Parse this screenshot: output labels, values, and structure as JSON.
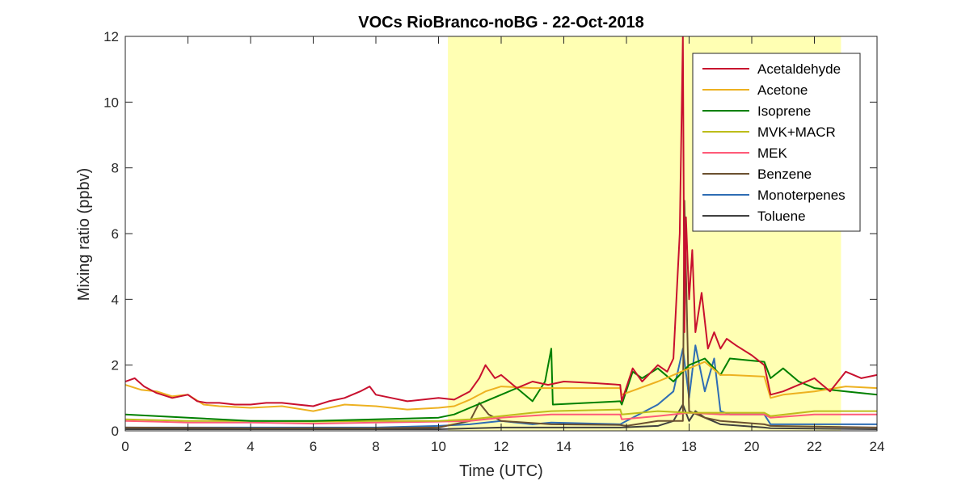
{
  "chart_data": {
    "type": "line",
    "title": "VOCs RioBranco-noBG - 22-Oct-2018",
    "xlabel": "Time (UTC)",
    "ylabel": "Mixing ratio (ppbv)",
    "xlim": [
      0,
      24
    ],
    "ylim": [
      0,
      12
    ],
    "xticks": [
      0,
      2,
      4,
      6,
      8,
      10,
      12,
      14,
      16,
      18,
      20,
      22,
      24
    ],
    "yticks": [
      0,
      2,
      4,
      6,
      8,
      10,
      12
    ],
    "grid": false,
    "legend_position": "top-right",
    "shaded_region": {
      "x": [
        10.3,
        22.85
      ],
      "color": "#ffffb3"
    },
    "series": [
      {
        "name": "Acetaldehyde",
        "color": "#c8102e",
        "x": [
          0,
          0.3,
          0.6,
          1.0,
          1.5,
          2.0,
          2.3,
          2.6,
          3.0,
          3.5,
          4.0,
          4.5,
          5.0,
          5.5,
          6.0,
          6.5,
          7.0,
          7.5,
          7.8,
          8.0,
          8.5,
          9.0,
          9.5,
          10.0,
          10.5,
          11.0,
          11.3,
          11.5,
          11.8,
          12.0,
          12.5,
          13.0,
          13.5,
          14.0,
          15.0,
          15.8,
          15.85,
          16.2,
          16.5,
          17.0,
          17.3,
          17.5,
          17.7,
          17.8,
          17.85,
          17.9,
          18.0,
          18.1,
          18.2,
          18.4,
          18.6,
          18.8,
          19.0,
          19.2,
          19.5,
          20.0,
          20.4,
          20.6,
          21.0,
          21.5,
          22.0,
          22.5,
          23.0,
          23.5,
          24.0
        ],
        "y": [
          1.5,
          1.6,
          1.35,
          1.15,
          1.0,
          1.1,
          0.9,
          0.85,
          0.85,
          0.8,
          0.8,
          0.85,
          0.85,
          0.8,
          0.75,
          0.9,
          1.0,
          1.2,
          1.35,
          1.1,
          1.0,
          0.9,
          0.95,
          1.0,
          0.95,
          1.2,
          1.6,
          2.0,
          1.6,
          1.7,
          1.3,
          1.5,
          1.4,
          1.5,
          1.45,
          1.4,
          0.9,
          1.9,
          1.5,
          2.0,
          1.8,
          2.2,
          6.0,
          12.0,
          3.0,
          6.5,
          4.0,
          5.5,
          3.0,
          4.2,
          2.5,
          3.0,
          2.5,
          2.8,
          2.6,
          2.3,
          2.0,
          1.1,
          1.2,
          1.4,
          1.6,
          1.2,
          1.8,
          1.6,
          1.7
        ]
      },
      {
        "name": "Acetone",
        "color": "#edb120",
        "x": [
          0,
          0.5,
          1.0,
          1.5,
          2.0,
          2.5,
          3.0,
          4.0,
          5.0,
          6.0,
          7.0,
          8.0,
          9.0,
          10.0,
          10.5,
          11.0,
          11.5,
          12.0,
          13.0,
          13.6,
          15.8,
          15.85,
          17.0,
          17.5,
          18.0,
          18.5,
          19.0,
          19.3,
          20.4,
          20.6,
          21.0,
          22.0,
          23.0,
          24.0
        ],
        "y": [
          1.4,
          1.25,
          1.2,
          1.05,
          1.1,
          0.8,
          0.75,
          0.7,
          0.75,
          0.6,
          0.8,
          0.75,
          0.65,
          0.7,
          0.75,
          0.95,
          1.2,
          1.35,
          1.3,
          1.3,
          1.3,
          1.1,
          1.5,
          1.7,
          1.9,
          2.1,
          1.7,
          1.7,
          1.65,
          1.0,
          1.1,
          1.2,
          1.35,
          1.3
        ]
      },
      {
        "name": "Isoprene",
        "color": "#008000",
        "x": [
          0,
          1.0,
          2.0,
          4.0,
          6.0,
          8.0,
          10.0,
          10.5,
          11.0,
          11.5,
          12.0,
          12.5,
          13.0,
          13.4,
          13.6,
          13.65,
          15.8,
          15.85,
          16.2,
          16.5,
          17.0,
          17.5,
          18.0,
          18.5,
          19.0,
          19.3,
          20.4,
          20.6,
          21.0,
          21.5,
          22.0,
          23.0,
          24.0
        ],
        "y": [
          0.5,
          0.45,
          0.4,
          0.3,
          0.3,
          0.35,
          0.4,
          0.5,
          0.7,
          0.9,
          1.1,
          1.3,
          0.9,
          1.5,
          2.5,
          0.8,
          0.9,
          0.8,
          1.8,
          1.6,
          1.9,
          1.5,
          2.0,
          2.2,
          1.7,
          2.2,
          2.1,
          1.6,
          1.9,
          1.5,
          1.3,
          1.2,
          1.1
        ]
      },
      {
        "name": "MVK+MACR",
        "color": "#bdbd1a",
        "x": [
          0,
          2.0,
          4.0,
          6.0,
          8.0,
          10.0,
          11.0,
          12.0,
          13.0,
          13.6,
          15.8,
          15.85,
          17.0,
          18.0,
          19.0,
          20.4,
          20.6,
          22.0,
          23.0,
          24.0
        ],
        "y": [
          0.35,
          0.3,
          0.3,
          0.28,
          0.3,
          0.3,
          0.35,
          0.45,
          0.55,
          0.6,
          0.65,
          0.5,
          0.6,
          0.55,
          0.55,
          0.55,
          0.45,
          0.6,
          0.6,
          0.6
        ]
      },
      {
        "name": "MEK",
        "color": "#ff5a78",
        "x": [
          0,
          1.0,
          2.0,
          4.0,
          6.0,
          8.0,
          10.0,
          11.0,
          12.0,
          13.6,
          15.8,
          15.85,
          17.0,
          18.0,
          19.0,
          20.4,
          20.6,
          22.0,
          24.0
        ],
        "y": [
          0.3,
          0.28,
          0.25,
          0.25,
          0.22,
          0.25,
          0.28,
          0.3,
          0.4,
          0.5,
          0.5,
          0.35,
          0.45,
          0.55,
          0.5,
          0.5,
          0.4,
          0.5,
          0.5
        ]
      },
      {
        "name": "Benzene",
        "color": "#6b5030",
        "x": [
          0,
          4.0,
          8.0,
          10.0,
          11.0,
          11.3,
          11.6,
          12.0,
          13.6,
          15.8,
          16.0,
          17.0,
          17.8,
          17.85,
          18.0,
          18.5,
          19.0,
          20.4,
          20.6,
          24.0
        ],
        "y": [
          0.1,
          0.08,
          0.08,
          0.1,
          0.3,
          0.85,
          0.5,
          0.3,
          0.2,
          0.18,
          0.15,
          0.3,
          0.3,
          7.0,
          0.6,
          0.4,
          0.3,
          0.2,
          0.15,
          0.1
        ]
      },
      {
        "name": "Monoterpenes",
        "color": "#2e6db4",
        "x": [
          0,
          4.0,
          8.0,
          10.0,
          11.0,
          12.0,
          13.0,
          13.6,
          15.8,
          16.0,
          17.0,
          17.5,
          17.8,
          18.0,
          18.2,
          18.5,
          18.8,
          19.0,
          19.3,
          20.4,
          20.6,
          24.0
        ],
        "y": [
          0.1,
          0.1,
          0.1,
          0.15,
          0.2,
          0.3,
          0.2,
          0.25,
          0.2,
          0.3,
          0.8,
          1.2,
          2.5,
          1.0,
          2.6,
          1.2,
          2.2,
          0.6,
          0.5,
          0.5,
          0.2,
          0.2
        ]
      },
      {
        "name": "Toluene",
        "color": "#404040",
        "x": [
          0,
          6.0,
          10.0,
          12.0,
          13.6,
          15.8,
          17.0,
          17.5,
          17.8,
          18.0,
          18.2,
          18.5,
          19.0,
          20.4,
          20.6,
          24.0
        ],
        "y": [
          0.05,
          0.05,
          0.05,
          0.1,
          0.1,
          0.1,
          0.15,
          0.3,
          0.8,
          0.3,
          0.6,
          0.4,
          0.2,
          0.1,
          0.08,
          0.05
        ]
      }
    ]
  }
}
